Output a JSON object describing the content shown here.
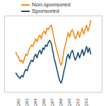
{
  "chart_data": {
    "type": "line",
    "categories": [
      null,
      null,
      "3Q01",
      null,
      null,
      null,
      null,
      null,
      "1Q03",
      null,
      null,
      null,
      null,
      null,
      "3Q04",
      null,
      null,
      null,
      null,
      null,
      "1Q06",
      null,
      null,
      null,
      null,
      null,
      "3Q07",
      null,
      null,
      null,
      null,
      null,
      "1Q09",
      null,
      null,
      null,
      null,
      null,
      "3Q10",
      null,
      null,
      null,
      null,
      null,
      "1Q12",
      null,
      null,
      null,
      null,
      null,
      "3Q13",
      null,
      null,
      null
    ],
    "series": [
      {
        "name": "Non-sponsored",
        "color": "#f28e1c",
        "values": [
          52,
          48,
          45,
          40,
          42,
          38,
          44,
          50,
          48,
          55,
          58,
          62,
          60,
          65,
          70,
          66,
          72,
          75,
          70,
          78,
          80,
          76,
          84,
          82,
          86,
          88,
          80,
          70,
          62,
          55,
          48,
          40,
          35,
          42,
          55,
          62,
          70,
          78,
          72,
          80,
          82,
          76,
          70,
          74,
          80,
          72,
          78,
          84,
          76,
          82,
          88,
          80,
          86,
          94
        ]
      },
      {
        "name": "Sponsored",
        "color": "#1f4e79",
        "values": [
          25,
          22,
          20,
          18,
          22,
          20,
          26,
          30,
          28,
          34,
          38,
          42,
          40,
          46,
          50,
          45,
          52,
          55,
          50,
          58,
          56,
          62,
          60,
          66,
          68,
          64,
          55,
          45,
          38,
          30,
          22,
          15,
          12,
          18,
          28,
          35,
          45,
          50,
          44,
          52,
          55,
          48,
          42,
          46,
          52,
          45,
          50,
          56,
          48,
          54,
          60,
          52,
          58,
          50
        ]
      }
    ],
    "ylim": [
      0,
      100
    ],
    "tick_labels": "x",
    "legend": "top-left",
    "grid": false
  }
}
